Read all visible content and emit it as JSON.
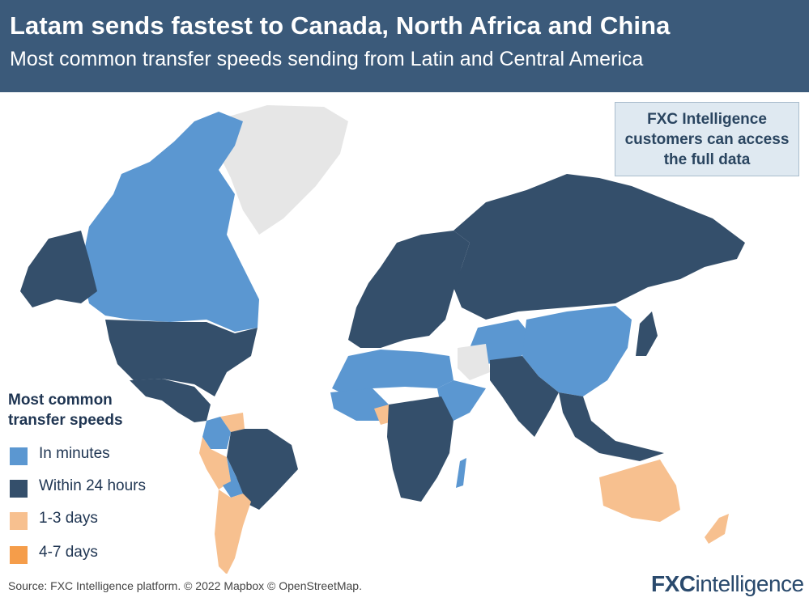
{
  "header": {
    "title": "Latam sends fastest to Canada, North Africa and China",
    "subtitle": "Most common transfer speeds sending from Latin and Central America"
  },
  "info_box": {
    "line1": "FXC Intelligence",
    "line2": "customers can access",
    "line3": "the full data"
  },
  "legend": {
    "title_line1": "Most common",
    "title_line2": "transfer speeds",
    "items": [
      {
        "label": "In minutes",
        "color": "#5b97d1"
      },
      {
        "label": "Within 24 hours",
        "color": "#344f6b"
      },
      {
        "label": "1-3 days",
        "color": "#f7c08f"
      },
      {
        "label": "4-7 days",
        "color": "#f59d4a"
      }
    ]
  },
  "map_colors": {
    "no_data": "#e6e6e6",
    "minutes": "#5b97d1",
    "hours": "#344f6b",
    "days_1_3": "#f7c08f"
  },
  "source": "Source: FXC Intelligence platform. © 2022 Mapbox © OpenStreetMap.",
  "logo": {
    "fxc": "FXC",
    "intelligence": "intelligence"
  }
}
